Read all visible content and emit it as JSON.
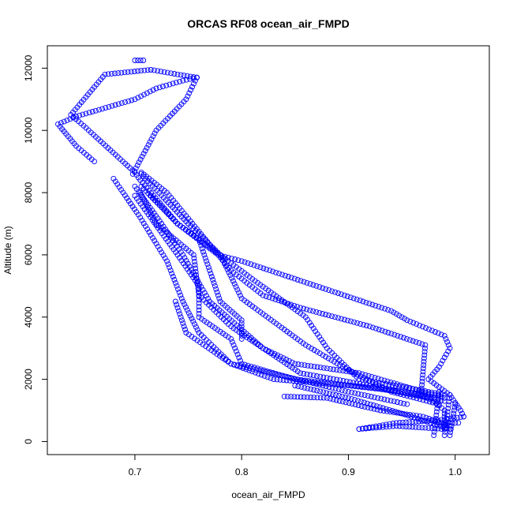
{
  "chart_data": {
    "type": "scatter",
    "title": "ORCAS RF08 ocean_air_FMPD",
    "xlabel": "ocean_air_FMPD",
    "ylabel": "Altitude (m)",
    "xlim": [
      0.618,
      1.032
    ],
    "ylim": [
      -420,
      12720
    ],
    "x_ticks": [
      0.7,
      0.8,
      0.9,
      1.0
    ],
    "x_tick_labels": [
      "0.7",
      "0.8",
      "0.9",
      "1.0"
    ],
    "y_ticks": [
      0,
      2000,
      4000,
      6000,
      8000,
      10000,
      12000
    ],
    "y_tick_labels": [
      "0",
      "2000",
      "4000",
      "6000",
      "8000",
      "10000",
      "12000"
    ],
    "marker": "open-circle",
    "marker_color": "#0000ff",
    "grid": false,
    "legend": "none",
    "series": [
      {
        "segments": [
          [
            [
              0.662,
              9000
            ],
            [
              0.645,
              9500
            ],
            [
              0.628,
              10200
            ],
            [
              0.645,
              10450
            ],
            [
              0.7,
              11000
            ],
            [
              0.72,
              11350
            ],
            [
              0.745,
              11600
            ],
            [
              0.758,
              11700
            ]
          ],
          [
            [
              0.758,
              11700
            ],
            [
              0.74,
              11800
            ],
            [
              0.715,
              11950
            ]
          ],
          [
            [
              0.715,
              11950
            ],
            [
              0.672,
              11800
            ],
            [
              0.64,
              10500
            ],
            [
              0.652,
              10150
            ],
            [
              0.7,
              8650
            ]
          ],
          [
            [
              0.7,
              8650
            ],
            [
              0.705,
              8400
            ],
            [
              0.74,
              7000
            ],
            [
              0.778,
              6000
            ],
            [
              0.8,
              5800
            ],
            [
              0.87,
              5000
            ],
            [
              0.94,
              4200
            ],
            [
              0.955,
              3900
            ],
            [
              0.99,
              3400
            ],
            [
              0.995,
              3000
            ],
            [
              0.985,
              2400
            ],
            [
              0.975,
              2000
            ],
            [
              0.995,
              1500
            ],
            [
              1.005,
              1000
            ],
            [
              1.008,
              800
            ]
          ],
          [
            [
              1.008,
              800
            ],
            [
              0.99,
              700
            ],
            [
              0.945,
              600
            ],
            [
              0.91,
              400
            ]
          ],
          [
            [
              0.91,
              400
            ],
            [
              0.945,
              500
            ],
            [
              0.99,
              400
            ]
          ],
          [
            [
              0.99,
              400
            ],
            [
              0.99,
              1000
            ],
            [
              0.98,
              1300
            ],
            [
              0.968,
              1500
            ]
          ],
          [
            [
              0.968,
              1500
            ],
            [
              0.972,
              3100
            ],
            [
              0.92,
              3700
            ],
            [
              0.855,
              4300
            ],
            [
              0.82,
              4700
            ],
            [
              0.79,
              5500
            ],
            [
              0.73,
              8000
            ],
            [
              0.706,
              8650
            ]
          ],
          [
            [
              0.758,
              11700
            ],
            [
              0.748,
              11000
            ],
            [
              0.72,
              10000
            ],
            [
              0.698,
              8600
            ]
          ],
          [
            [
              0.706,
              8600
            ],
            [
              0.75,
              7000
            ],
            [
              0.78,
              6000
            ],
            [
              0.8,
              4600
            ],
            [
              0.86,
              3100
            ],
            [
              0.9,
              2300
            ],
            [
              0.94,
              1600
            ],
            [
              0.985,
              1200
            ]
          ],
          [
            [
              0.706,
              8200
            ],
            [
              0.74,
              7000
            ],
            [
              0.76,
              6500
            ],
            [
              0.815,
              5100
            ],
            [
              0.86,
              4000
            ],
            [
              0.88,
              3000
            ],
            [
              0.91,
              2000
            ],
            [
              0.96,
              1700
            ],
            [
              0.99,
              1500
            ]
          ],
          [
            [
              0.7,
              8200
            ],
            [
              0.725,
              7000
            ],
            [
              0.745,
              6000
            ],
            [
              0.77,
              4500
            ],
            [
              0.8,
              3600
            ],
            [
              0.82,
              3000
            ],
            [
              0.85,
              2500
            ],
            [
              0.91,
              2200
            ],
            [
              0.99,
              1400
            ]
          ],
          [
            [
              0.68,
              8450
            ],
            [
              0.705,
              7200
            ],
            [
              0.73,
              5800
            ],
            [
              0.745,
              4500
            ],
            [
              0.76,
              3500
            ],
            [
              0.79,
              2500
            ],
            [
              0.83,
              2000
            ],
            [
              0.9,
              1800
            ],
            [
              0.975,
              1500
            ]
          ],
          [
            [
              0.705,
              8000
            ],
            [
              0.72,
              7000
            ],
            [
              0.755,
              6000
            ],
            [
              0.76,
              4700
            ],
            [
              0.79,
              3700
            ],
            [
              0.82,
              3000
            ],
            [
              0.855,
              2200
            ],
            [
              0.92,
              1800
            ],
            [
              0.98,
              1400
            ]
          ],
          [
            [
              0.715,
              7900
            ],
            [
              0.74,
              7000
            ],
            [
              0.76,
              6500
            ],
            [
              0.78,
              4500
            ],
            [
              0.8,
              3900
            ],
            [
              0.8,
              3300
            ]
          ],
          [
            [
              0.7,
              7900
            ],
            [
              0.74,
              6000
            ],
            [
              0.76,
              5000
            ],
            [
              0.76,
              4000
            ],
            [
              0.79,
              3300
            ],
            [
              0.8,
              2500
            ],
            [
              0.85,
              2000
            ],
            [
              0.93,
              1700
            ],
            [
              0.99,
              1300
            ]
          ],
          [
            [
              0.738,
              4500
            ],
            [
              0.748,
              3500
            ],
            [
              0.79,
              2500
            ],
            [
              0.84,
              2100
            ],
            [
              0.9,
              1600
            ],
            [
              0.955,
              1200
            ]
          ],
          [
            [
              0.84,
              1450
            ],
            [
              0.88,
              1400
            ],
            [
              0.93,
              1000
            ],
            [
              0.97,
              800
            ],
            [
              0.995,
              500
            ]
          ],
          [
            [
              0.85,
              1800
            ],
            [
              0.9,
              1400
            ],
            [
              0.95,
              900
            ],
            [
              0.995,
              400
            ]
          ],
          [
            [
              0.98,
              200
            ],
            [
              0.985,
              1600
            ]
          ],
          [
            [
              0.99,
              200
            ],
            [
              0.995,
              1500
            ]
          ],
          [
            [
              0.995,
              200
            ],
            [
              1.0,
              1200
            ]
          ],
          [
            [
              0.985,
              600
            ],
            [
              1.003,
              600
            ]
          ],
          [
            [
              0.7,
              12250
            ],
            [
              0.708,
              12250
            ]
          ]
        ]
      }
    ]
  }
}
